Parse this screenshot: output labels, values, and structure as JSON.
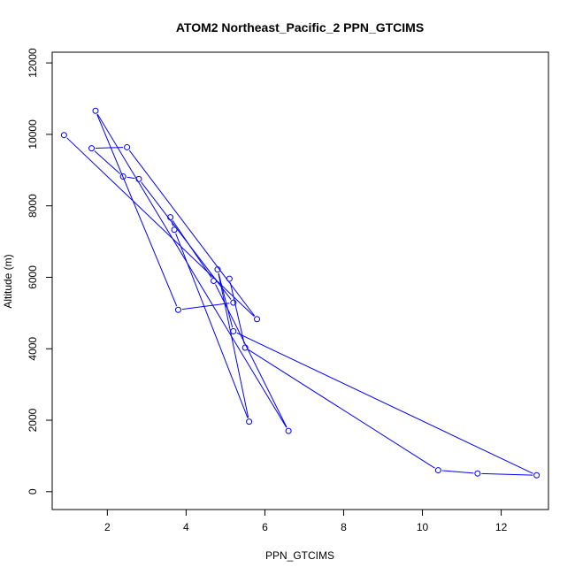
{
  "chart_data": {
    "type": "line",
    "title": "ATOM2 Northeast_Pacific_2 PPN_GTCIMS",
    "xlabel": "PPN_GTCIMS",
    "ylabel": "Altitude (m)",
    "xlim": [
      0.6,
      13.2
    ],
    "ylim": [
      -500,
      12300
    ],
    "xticks": [
      2,
      4,
      6,
      8,
      10,
      12
    ],
    "yticks": [
      0,
      2000,
      4000,
      6000,
      8000,
      10000,
      12000
    ],
    "grid": false,
    "legend": "none",
    "series": [
      {
        "color": "#0000ff",
        "marker": "open-circle",
        "points": [
          [
            0.9,
            9980
          ],
          [
            5.8,
            4830
          ],
          [
            2.5,
            9640
          ],
          [
            1.6,
            9610
          ],
          [
            2.4,
            8820
          ],
          [
            2.8,
            8750
          ],
          [
            5.2,
            5290
          ],
          [
            3.8,
            5090
          ],
          [
            1.7,
            10660
          ],
          [
            6.6,
            1700
          ],
          [
            4.7,
            5900
          ],
          [
            3.6,
            7680
          ],
          [
            3.7,
            7330
          ],
          [
            5.6,
            1960
          ],
          [
            4.8,
            6220
          ],
          [
            5.2,
            4490
          ],
          [
            12.9,
            460
          ],
          [
            11.4,
            510
          ],
          [
            10.4,
            600
          ],
          [
            5.5,
            4030
          ],
          [
            5.1,
            5960
          ]
        ]
      }
    ]
  }
}
